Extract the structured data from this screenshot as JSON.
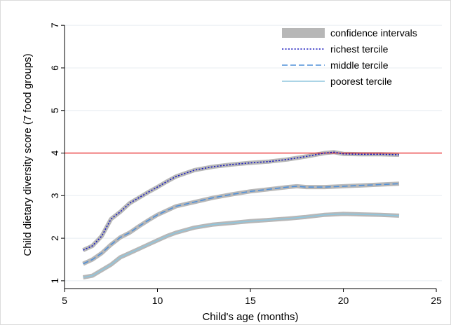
{
  "chart_data": {
    "type": "line",
    "title": "",
    "xlabel": "Child's age (months)",
    "ylabel": "Child dietary diversity score (7 food groups)",
    "xlim": [
      5,
      25.3
    ],
    "ylim": [
      0.85,
      7.2
    ],
    "xticks": [
      5,
      10,
      15,
      20,
      25
    ],
    "yticks": [
      1,
      2,
      3,
      4,
      5,
      6,
      7
    ],
    "grid": "horizontal",
    "legend_position": "top-right",
    "reference_line": {
      "y": 4,
      "color": "#e41a1c"
    },
    "confidence_band": {
      "label": "confidence intervals",
      "color": "#b7b7b7"
    },
    "series": [
      {
        "name": "richest tercile",
        "style": "dotted",
        "color": "#1f1fbf",
        "x": [
          6,
          6.5,
          7,
          7.5,
          8,
          8.5,
          9,
          9.5,
          10,
          10.5,
          11,
          12,
          13,
          14,
          15,
          16,
          17,
          18,
          19,
          19.5,
          20,
          21,
          22,
          23
        ],
        "y": [
          1.72,
          1.82,
          2.05,
          2.45,
          2.62,
          2.82,
          2.95,
          3.08,
          3.2,
          3.33,
          3.45,
          3.6,
          3.68,
          3.73,
          3.77,
          3.8,
          3.85,
          3.92,
          4.0,
          4.02,
          3.98,
          3.97,
          3.97,
          3.96
        ]
      },
      {
        "name": "middle tercile",
        "style": "dashed",
        "color": "#4f90d9",
        "x": [
          6,
          6.5,
          7,
          7.5,
          8,
          8.5,
          9,
          9.5,
          10,
          10.5,
          11,
          12,
          13,
          14,
          15,
          16,
          17,
          17.5,
          18,
          19,
          20,
          21,
          22,
          23
        ],
        "y": [
          1.4,
          1.5,
          1.65,
          1.85,
          2.02,
          2.13,
          2.28,
          2.42,
          2.55,
          2.65,
          2.75,
          2.85,
          2.95,
          3.03,
          3.1,
          3.15,
          3.2,
          3.22,
          3.2,
          3.2,
          3.22,
          3.24,
          3.26,
          3.28
        ]
      },
      {
        "name": "poorest tercile",
        "style": "solid",
        "color": "#8fc6de",
        "x": [
          6,
          6.5,
          7,
          7.5,
          8,
          8.5,
          9,
          9.5,
          10,
          10.5,
          11,
          12,
          13,
          14,
          15,
          16,
          17,
          18,
          19,
          20,
          21,
          22,
          23
        ],
        "y": [
          1.08,
          1.12,
          1.25,
          1.38,
          1.55,
          1.65,
          1.75,
          1.85,
          1.95,
          2.05,
          2.13,
          2.25,
          2.32,
          2.36,
          2.4,
          2.43,
          2.46,
          2.5,
          2.55,
          2.57,
          2.56,
          2.55,
          2.53
        ]
      }
    ],
    "legend": [
      {
        "label": "confidence intervals",
        "kind": "band"
      },
      {
        "label": "richest tercile",
        "kind": "dotted"
      },
      {
        "label": "middle tercile",
        "kind": "dashed"
      },
      {
        "label": "poorest tercile",
        "kind": "solid"
      }
    ]
  }
}
